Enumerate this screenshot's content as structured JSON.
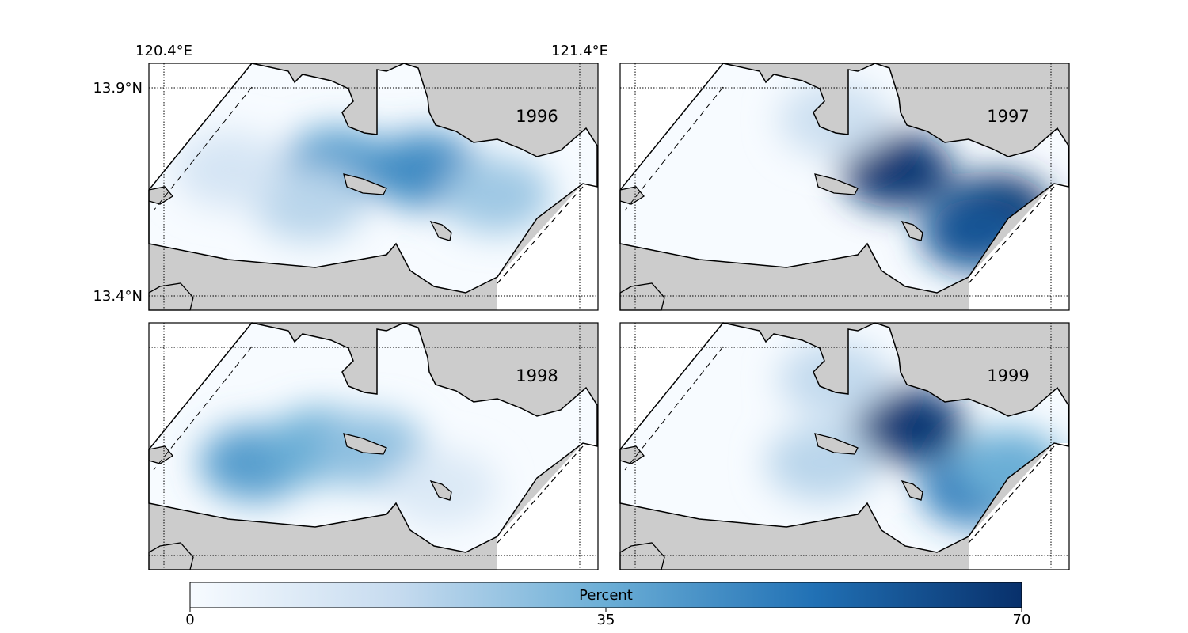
{
  "figure": {
    "colors": {
      "land": "#cccccc",
      "water_out": "#ffffff",
      "coast": "#000000",
      "cmap_low": "#f7fbff",
      "cmap_mid": "#6baed6",
      "cmap_high": "#08306b"
    },
    "lon_labels": [
      "120.4°E",
      "121.4°E"
    ],
    "lat_labels": [
      "13.9°N",
      "13.4°N"
    ],
    "panels": [
      {
        "year": "1996",
        "hotspots": [
          {
            "lon": 120.82,
            "lat": 13.71,
            "value": 40
          },
          {
            "lon": 121.03,
            "lat": 13.7,
            "value": 45
          },
          {
            "lon": 121.2,
            "lat": 13.64,
            "value": 25
          },
          {
            "lon": 120.75,
            "lat": 13.62,
            "value": 20
          },
          {
            "lon": 120.56,
            "lat": 13.7,
            "value": 12
          }
        ]
      },
      {
        "year": "1997",
        "hotspots": [
          {
            "lon": 121.03,
            "lat": 13.7,
            "value": 68
          },
          {
            "lon": 121.27,
            "lat": 13.6,
            "value": 70
          },
          {
            "lon": 121.22,
            "lat": 13.55,
            "value": 60
          },
          {
            "lon": 120.88,
            "lat": 13.82,
            "value": 15
          }
        ]
      },
      {
        "year": "1998",
        "hotspots": [
          {
            "lon": 120.62,
            "lat": 13.62,
            "value": 40
          },
          {
            "lon": 120.78,
            "lat": 13.66,
            "value": 35
          },
          {
            "lon": 120.9,
            "lat": 13.65,
            "value": 28
          },
          {
            "lon": 121.07,
            "lat": 13.56,
            "value": 10
          }
        ]
      },
      {
        "year": "1999",
        "hotspots": [
          {
            "lon": 121.06,
            "lat": 13.71,
            "value": 68
          },
          {
            "lon": 121.22,
            "lat": 13.56,
            "value": 50
          },
          {
            "lon": 121.3,
            "lat": 13.61,
            "value": 35
          },
          {
            "lon": 120.88,
            "lat": 13.82,
            "value": 18
          },
          {
            "lon": 120.85,
            "lat": 13.62,
            "value": 20
          }
        ]
      }
    ],
    "colorbar": {
      "label": "Percent",
      "ticks": [
        "0",
        "35",
        "70"
      ],
      "min": 0,
      "max": 70
    }
  }
}
